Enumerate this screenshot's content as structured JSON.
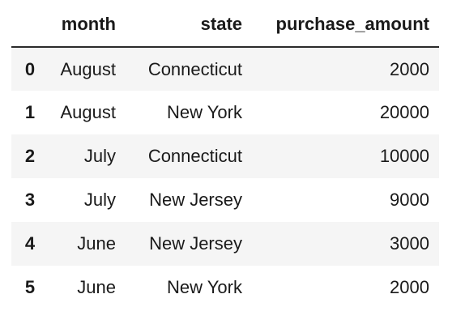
{
  "table": {
    "columns": [
      "month",
      "state",
      "purchase_amount"
    ],
    "rows": [
      {
        "index": "0",
        "month": "August",
        "state": "Connecticut",
        "purchase_amount": "2000"
      },
      {
        "index": "1",
        "month": "August",
        "state": "New York",
        "purchase_amount": "20000"
      },
      {
        "index": "2",
        "month": "July",
        "state": "Connecticut",
        "purchase_amount": "10000"
      },
      {
        "index": "3",
        "month": "July",
        "state": "New Jersey",
        "purchase_amount": "9000"
      },
      {
        "index": "4",
        "month": "June",
        "state": "New Jersey",
        "purchase_amount": "3000"
      },
      {
        "index": "5",
        "month": "June",
        "state": "New York",
        "purchase_amount": "2000"
      }
    ]
  }
}
